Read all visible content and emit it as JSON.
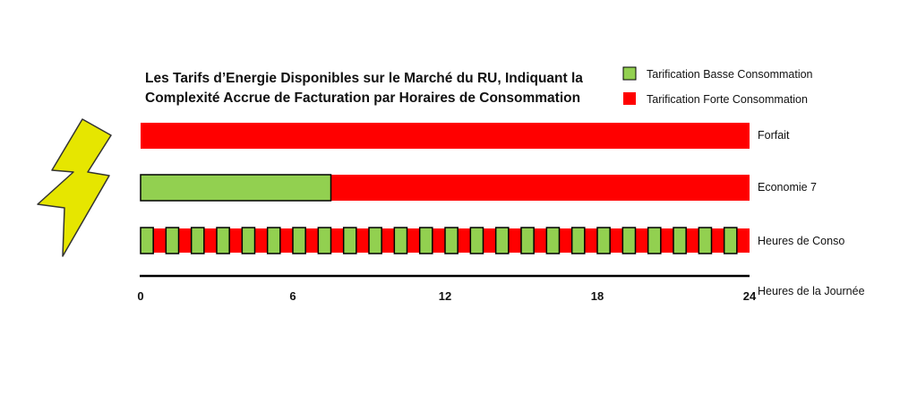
{
  "chart_data": {
    "type": "bar",
    "title_lines": [
      "Les Tarifs d’Energie Disponibles sur le Marché du RU, Indiquant la",
      "Complexité Accrue de Facturation par Horaires de Consommation"
    ],
    "xlabel": "Heures de la Journée",
    "xlim": [
      0,
      24
    ],
    "xticks": [
      0,
      6,
      12,
      18,
      24
    ],
    "legend_position": "top-right",
    "legend": [
      {
        "key": "low",
        "label": "Tarification Basse Consommation",
        "color": "#92D050"
      },
      {
        "key": "high",
        "label": "Tarification Forte Consommation",
        "color": "#FF0000"
      }
    ],
    "colors": {
      "low": "#92D050",
      "high": "#FF0000",
      "outline": "#000000",
      "bolt": "#E6E600"
    },
    "rows": [
      {
        "name": "Forfait",
        "segments": [
          {
            "start": 0,
            "end": 24,
            "tariff": "high"
          }
        ]
      },
      {
        "name": "Economie 7",
        "segments": [
          {
            "start": 0,
            "end": 7.5,
            "tariff": "low"
          },
          {
            "start": 7.5,
            "end": 24,
            "tariff": "high"
          }
        ]
      },
      {
        "name": "Heures de Conso",
        "alternating": {
          "start": 0,
          "end": 24,
          "period": 1,
          "low_fraction": 0.5,
          "first": "low"
        }
      }
    ],
    "decoration": {
      "icon": "lightning-bolt-icon"
    }
  }
}
